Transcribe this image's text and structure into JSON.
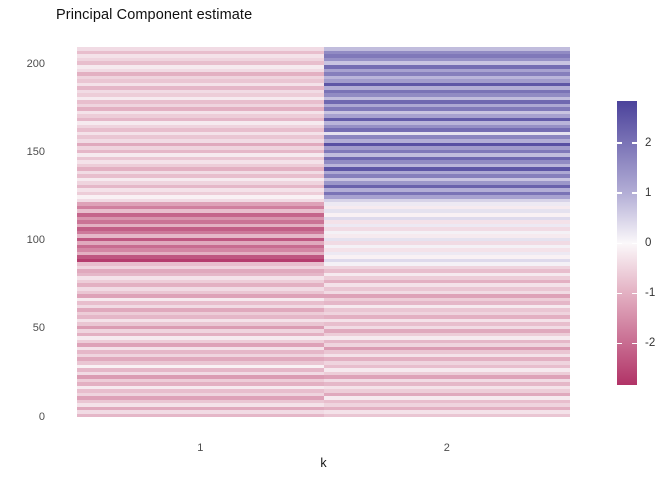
{
  "title": "Principal Component estimate",
  "axes": {
    "x_label": "k",
    "x_tick_labels": [
      "1",
      "2"
    ],
    "y_tick_labels": [
      "0",
      "50",
      "100",
      "150",
      "200"
    ]
  },
  "legend": {
    "tick_labels": [
      "2",
      "1",
      "0",
      "-1",
      "-2"
    ]
  },
  "colors": {
    "background": "#ffffff",
    "title_text": "#111111",
    "axis_text": "#4d4d4d",
    "legend_text": "#333333",
    "heat_low": "#B13367",
    "heat_mid": "#FBF8FA",
    "heat_high": "#4B429B"
  },
  "chart_data": {
    "type": "heatmap",
    "title": "Principal Component estimate",
    "xlabel": "k",
    "ylabel": "",
    "categories_x": [
      1,
      2
    ],
    "y_ticks": [
      0,
      50,
      100,
      150,
      200
    ],
    "y_range": [
      0,
      210
    ],
    "row_band_size": 2,
    "value_range": [
      -2.83,
      2.84
    ],
    "legend_ticks": [
      2,
      1,
      0,
      -1,
      -2
    ],
    "legend_position": "right",
    "grid": false,
    "color_stops": [
      [
        -2.83,
        "#B13367"
      ],
      [
        -1.0,
        "#E3B0C2"
      ],
      [
        0.0,
        "#FBF8FA"
      ],
      [
        1.0,
        "#B3AED6"
      ],
      [
        2.84,
        "#4B429B"
      ]
    ],
    "series": [
      {
        "name": "k=1",
        "values": [
          -0.9,
          -0.4,
          -1.1,
          -0.3,
          -0.7,
          -1.2,
          -0.5,
          -0.8,
          -0.2,
          -1.0,
          -0.6,
          -1.3,
          -0.4,
          -0.9,
          -0.1,
          -0.7,
          -1.1,
          -0.5,
          -0.9,
          -0.3,
          -1.2,
          -0.6,
          -0.2,
          -1.0,
          -0.5,
          -1.3,
          -0.7,
          -0.3,
          -0.9,
          -0.6,
          -1.1,
          -0.4,
          -0.8,
          -0.2,
          -1.2,
          -0.7,
          -0.4,
          -1.0,
          -0.6,
          -0.3,
          -0.9,
          -1.1,
          -0.5,
          -0.8,
          -2.7,
          -2.3,
          -1.0,
          -1.6,
          -2.0,
          -1.1,
          -2.3,
          -0.9,
          -1.8,
          -2.2,
          -1.0,
          -1.9,
          -1.4,
          -2.1,
          -0.8,
          -1.7,
          -1.2,
          -0.4,
          -0.1,
          -0.6,
          -0.3,
          -0.9,
          -0.5,
          -0.2,
          -0.8,
          -0.4,
          -1.0,
          -0.6,
          -0.3,
          -0.7,
          -0.2,
          -0.9,
          -0.5,
          -1.1,
          -0.4,
          -0.7,
          -0.3,
          -0.8,
          -0.5,
          -0.2,
          -0.9,
          -0.6,
          -0.3,
          -1.0,
          -0.5,
          -0.8,
          -0.2,
          -0.6,
          -0.4,
          -0.9,
          -0.3,
          -0.7,
          -0.5,
          -1.0,
          -0.4,
          -0.2,
          -0.8,
          -0.5,
          -0.3,
          -0.8,
          -0.4
        ]
      },
      {
        "name": "k=2",
        "values": [
          -0.7,
          -0.3,
          -1.0,
          -0.5,
          -0.8,
          -0.2,
          -1.1,
          -0.6,
          -0.3,
          -0.9,
          -0.4,
          -1.2,
          -0.6,
          -0.2,
          -0.8,
          -0.5,
          -1.0,
          -0.3,
          -0.7,
          -1.3,
          -0.5,
          -0.9,
          -0.2,
          -0.6,
          -1.1,
          -0.4,
          -0.8,
          -0.3,
          -1.0,
          -0.5,
          -0.7,
          -0.2,
          -0.9,
          -0.6,
          -1.2,
          -0.4,
          -0.7,
          -0.3,
          -1.0,
          -0.6,
          -0.2,
          -0.8,
          -0.5,
          0.1,
          0.4,
          -0.1,
          0.2,
          -0.3,
          0.1,
          -0.4,
          0.3,
          -0.2,
          0.1,
          -0.4,
          0.2,
          -0.3,
          0.4,
          -0.1,
          0.3,
          -0.2,
          0.2,
          0.5,
          1.2,
          2.0,
          1.0,
          2.3,
          1.4,
          0.7,
          1.8,
          1.1,
          2.5,
          0.9,
          1.6,
          2.2,
          0.8,
          1.9,
          1.3,
          2.6,
          1.0,
          1.7,
          0.3,
          2.1,
          1.5,
          0.9,
          2.4,
          1.2,
          0.7,
          1.9,
          1.1,
          2.2,
          0.8,
          1.6,
          2.0,
          1.0,
          2.5,
          1.3,
          0.9,
          1.8,
          1.2,
          2.1,
          0.7,
          1.5,
          1.9,
          1.6,
          0.8
        ]
      }
    ]
  }
}
